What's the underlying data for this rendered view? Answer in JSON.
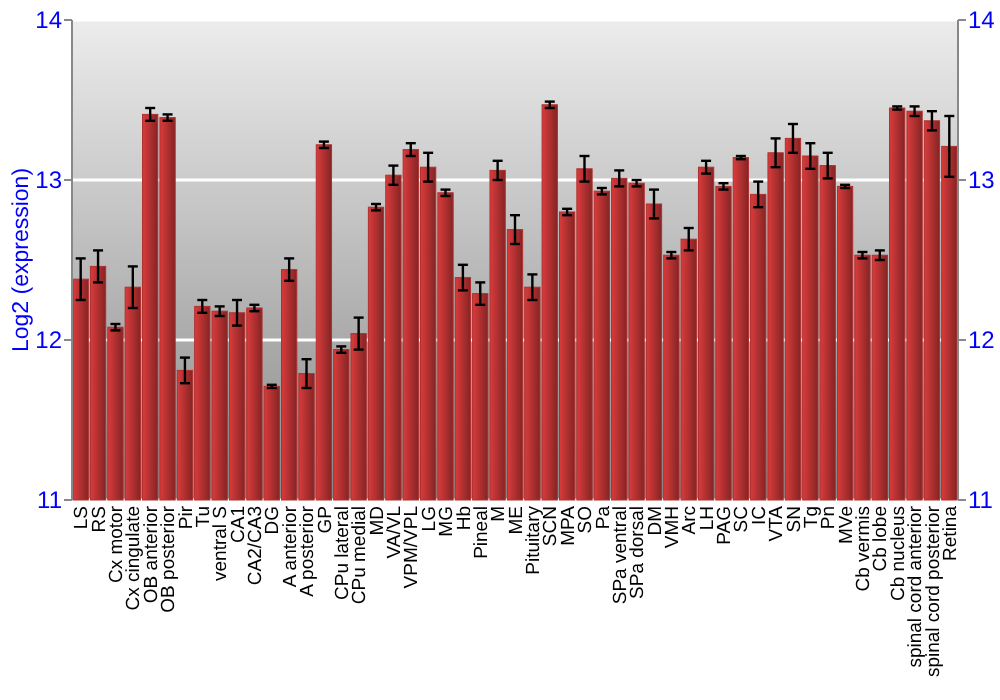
{
  "chart_data": {
    "type": "bar",
    "ylabel": "Log2 (expression)",
    "categories": [
      "LS",
      "RS",
      "Cx motor",
      "Cx cingulate",
      "OB anterior",
      "OB posterior",
      "Pir",
      "Tu",
      "ventral S",
      "CA1",
      "CA2/CA3",
      "DG",
      "A anterior",
      "A posterior",
      "GP",
      "CPu lateral",
      "CPu medial",
      "MD",
      "VA/VL",
      "VPM/VPL",
      "LG",
      "MG",
      "Hb",
      "Pineal",
      "M",
      "ME",
      "Pituitary",
      "SCN",
      "MPA",
      "SO",
      "Pa",
      "SPa ventral",
      "SPa dorsal",
      "DM",
      "VMH",
      "Arc",
      "LH",
      "PAG",
      "SC",
      "IC",
      "VTA",
      "SN",
      "Tg",
      "Pn",
      "MVe",
      "Cb vermis",
      "Cb lobe",
      "Cb nucleus",
      "spinal cord anterior",
      "spinal cord posterior",
      "Retina"
    ],
    "values": [
      12.38,
      12.46,
      12.08,
      12.33,
      13.41,
      13.39,
      11.81,
      12.21,
      12.18,
      12.17,
      12.2,
      11.71,
      12.44,
      11.79,
      13.22,
      11.94,
      12.04,
      12.83,
      13.03,
      13.19,
      13.08,
      12.92,
      12.39,
      12.29,
      13.06,
      12.69,
      12.33,
      13.47,
      12.8,
      13.07,
      12.93,
      13.01,
      12.98,
      12.85,
      12.53,
      12.63,
      13.08,
      12.96,
      13.14,
      12.91,
      13.17,
      13.26,
      13.15,
      13.09,
      12.96,
      12.53,
      12.53,
      13.45,
      13.43,
      13.37,
      13.21
    ],
    "errors": [
      0.13,
      0.1,
      0.02,
      0.13,
      0.04,
      0.02,
      0.08,
      0.04,
      0.03,
      0.08,
      0.02,
      0.01,
      0.07,
      0.09,
      0.02,
      0.02,
      0.1,
      0.02,
      0.06,
      0.04,
      0.09,
      0.02,
      0.08,
      0.07,
      0.06,
      0.09,
      0.08,
      0.02,
      0.02,
      0.08,
      0.02,
      0.05,
      0.02,
      0.09,
      0.02,
      0.07,
      0.04,
      0.02,
      0.01,
      0.08,
      0.09,
      0.09,
      0.08,
      0.08,
      0.01,
      0.02,
      0.03,
      0.01,
      0.03,
      0.06,
      0.19
    ],
    "color": "#b03030",
    "ylim": [
      11,
      14
    ],
    "yticks": [
      11,
      12,
      13,
      14
    ],
    "y2lim": [
      11,
      14
    ],
    "y2ticks": [
      11,
      12,
      13,
      14
    ],
    "grid": "y"
  }
}
